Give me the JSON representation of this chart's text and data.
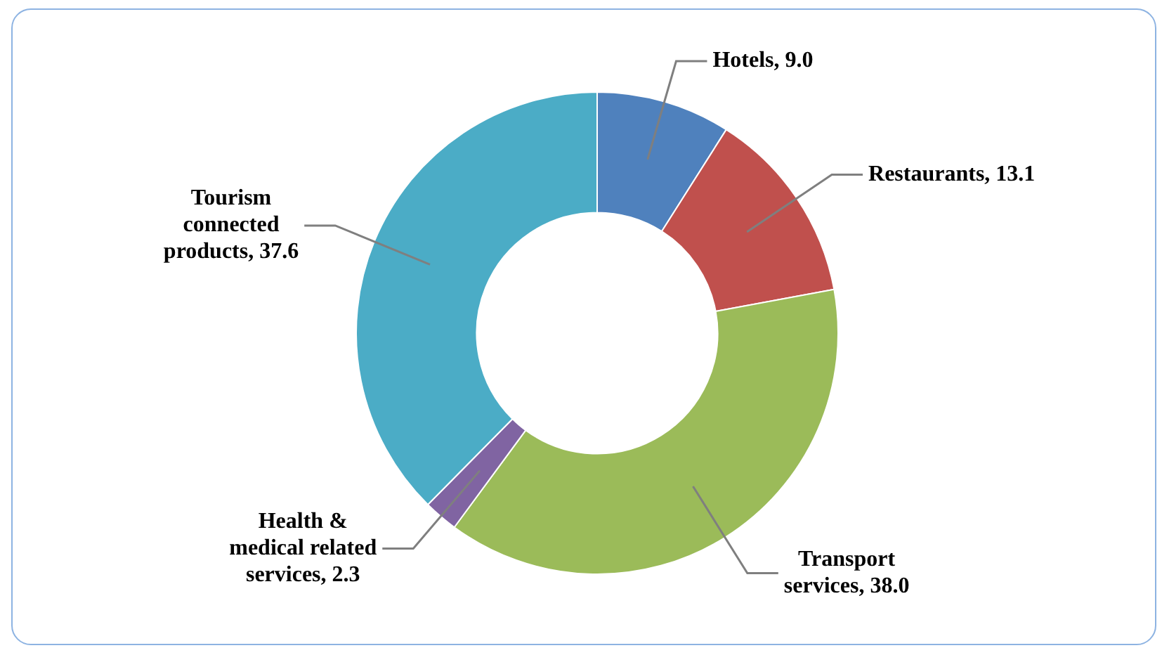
{
  "chart_data": {
    "type": "donut",
    "categories": [
      "Hotels",
      "Restaurants",
      "Transport services",
      "Health & medical related services",
      "Tourism connected products"
    ],
    "values": [
      9.0,
      13.1,
      38.0,
      2.3,
      37.6
    ],
    "value_labels": [
      "9.0",
      "13.1",
      "38.0",
      "2.3",
      "37.6"
    ],
    "colors": [
      "#4f81bd",
      "#c0504d",
      "#9bbb59",
      "#8064a2",
      "#4bacc6"
    ],
    "data_labels": true,
    "legend": false
  }
}
